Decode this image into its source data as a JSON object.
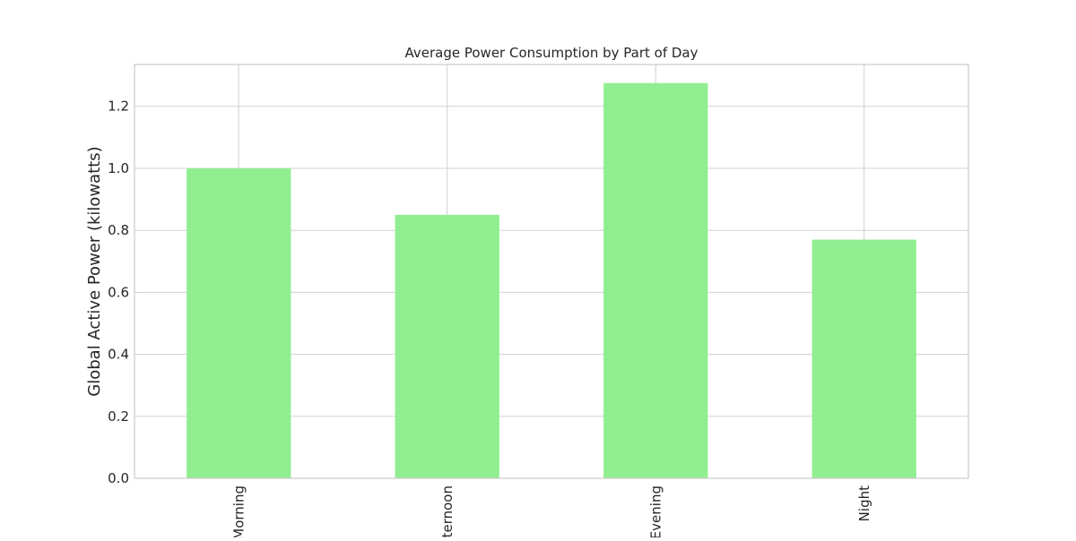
{
  "chart_data": {
    "type": "bar",
    "title": "Average Power Consumption by Part of Day",
    "xlabel": "",
    "ylabel": "Global Active Power (kilowatts)",
    "categories": [
      "Morning",
      "fternoon",
      "Evening",
      "Night"
    ],
    "values": [
      1.0,
      0.85,
      1.275,
      0.77
    ],
    "ylim": [
      0,
      1.335
    ],
    "yticks": [
      0.0,
      0.2,
      0.4,
      0.6,
      0.8,
      1.0,
      1.2
    ],
    "ytick_labels": [
      "0.0",
      "0.2",
      "0.4",
      "0.6",
      "0.8",
      "1.0",
      "1.2"
    ],
    "grid": true,
    "legend": "none",
    "bar_color": "#90ee90"
  }
}
